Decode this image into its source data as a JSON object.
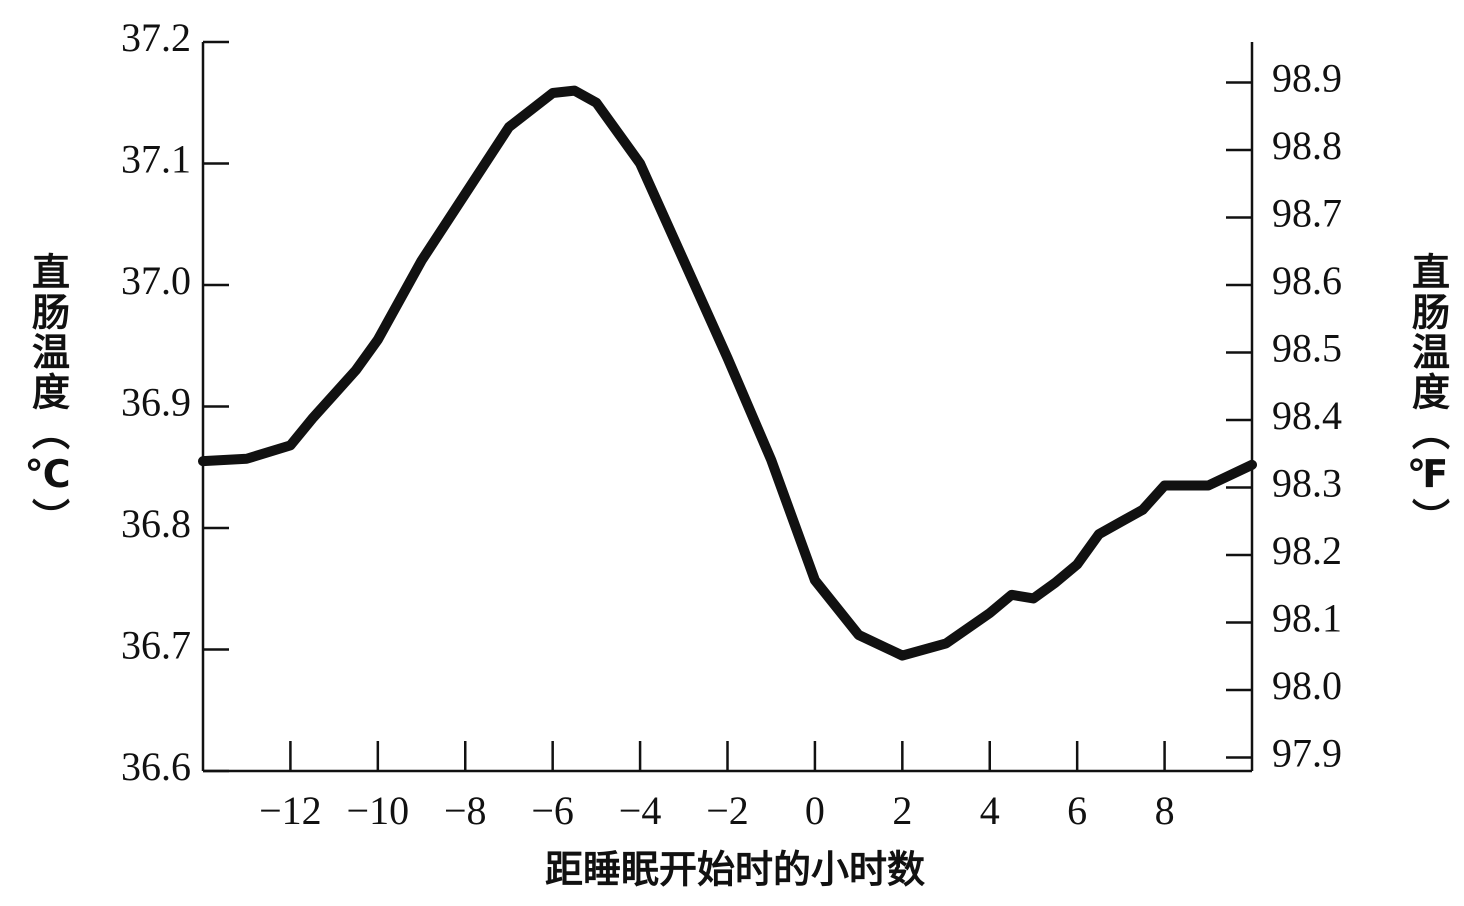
{
  "chart_data": {
    "type": "line",
    "x_label": "距睡眠开始时的小时数",
    "y_label": "直肠温度（℃）",
    "y2_label": "直肠温度（℉）",
    "x": [
      -14,
      -13,
      -12,
      -11.5,
      -11,
      -10.5,
      -10,
      -9,
      -8,
      -7,
      -6,
      -5.5,
      -5,
      -4,
      -3,
      -2,
      -1,
      0,
      1,
      2,
      3,
      4,
      4.5,
      5,
      5.5,
      6,
      6.5,
      7,
      7.5,
      8,
      9,
      10
    ],
    "series": [
      {
        "color": "#111111",
        "values": [
          36.855,
          36.857,
          36.868,
          36.89,
          36.91,
          36.93,
          36.955,
          37.02,
          37.075,
          37.13,
          37.158,
          37.16,
          37.15,
          37.1,
          37.02,
          36.94,
          36.856,
          36.757,
          36.712,
          36.695,
          36.705,
          36.73,
          36.745,
          36.742,
          36.755,
          36.77,
          36.795,
          36.805,
          36.815,
          36.835,
          36.835,
          36.852
        ]
      }
    ],
    "xlim": [
      -14,
      10
    ],
    "xticks": [
      {
        "value": -12,
        "label": "−12"
      },
      {
        "value": -10,
        "label": "−10"
      },
      {
        "value": -8,
        "label": "−8"
      },
      {
        "value": -6,
        "label": "−6"
      },
      {
        "value": -4,
        "label": "−4"
      },
      {
        "value": -2,
        "label": "−2"
      },
      0,
      2,
      4,
      6,
      8
    ],
    "ylim": [
      36.6,
      37.2
    ],
    "yticks": [
      36.6,
      36.7,
      36.8,
      36.9,
      {
        "value": 37.0,
        "label": "37.0"
      },
      37.1,
      37.2
    ],
    "y2lim": [
      97.88,
      98.96
    ],
    "y2ticks": [
      97.9,
      {
        "value": 98.0,
        "label": "98.0"
      },
      98.1,
      98.2,
      98.3,
      98.4,
      98.5,
      98.6,
      98.7,
      98.8,
      98.9
    ]
  }
}
